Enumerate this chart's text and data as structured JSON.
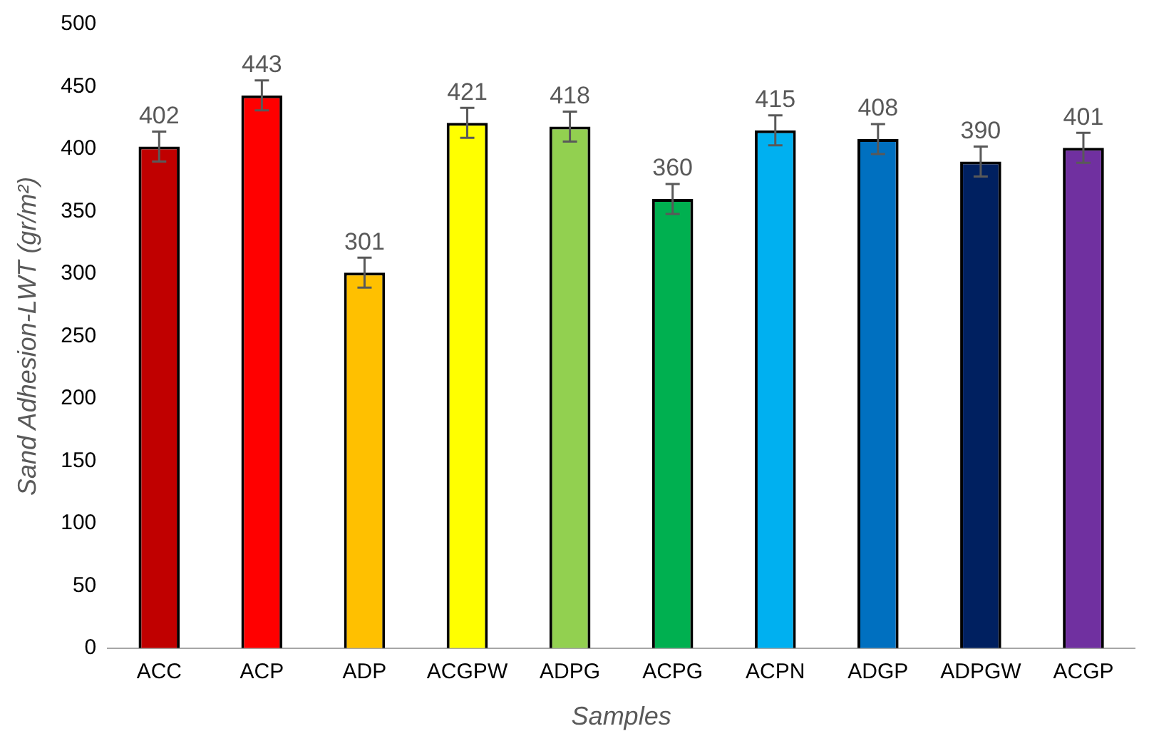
{
  "chart_data": {
    "type": "bar",
    "xlabel": "Samples",
    "ylabel": "Sand Adhesion-LWT (gr/m²)",
    "categories": [
      "ACC",
      "ACP",
      "ADP",
      "ACGPW",
      "ADPG",
      "ACPG",
      "ACPN",
      "ADGP",
      "ADPGW",
      "ACGP"
    ],
    "values": [
      402,
      443,
      301,
      421,
      418,
      360,
      415,
      408,
      390,
      401
    ],
    "colors": [
      "#c00000",
      "#ff0000",
      "#ffc000",
      "#ffff00",
      "#92d050",
      "#00b050",
      "#00b0f0",
      "#0070c0",
      "#002060",
      "#7030a0"
    ],
    "errors": [
      12,
      12,
      12,
      12,
      12,
      12,
      12,
      12,
      12,
      12
    ],
    "ylim": [
      0,
      500
    ],
    "yticks": [
      0,
      50,
      100,
      150,
      200,
      250,
      300,
      350,
      400,
      450,
      500
    ],
    "grid": false,
    "legend": false,
    "data_labels": true
  }
}
